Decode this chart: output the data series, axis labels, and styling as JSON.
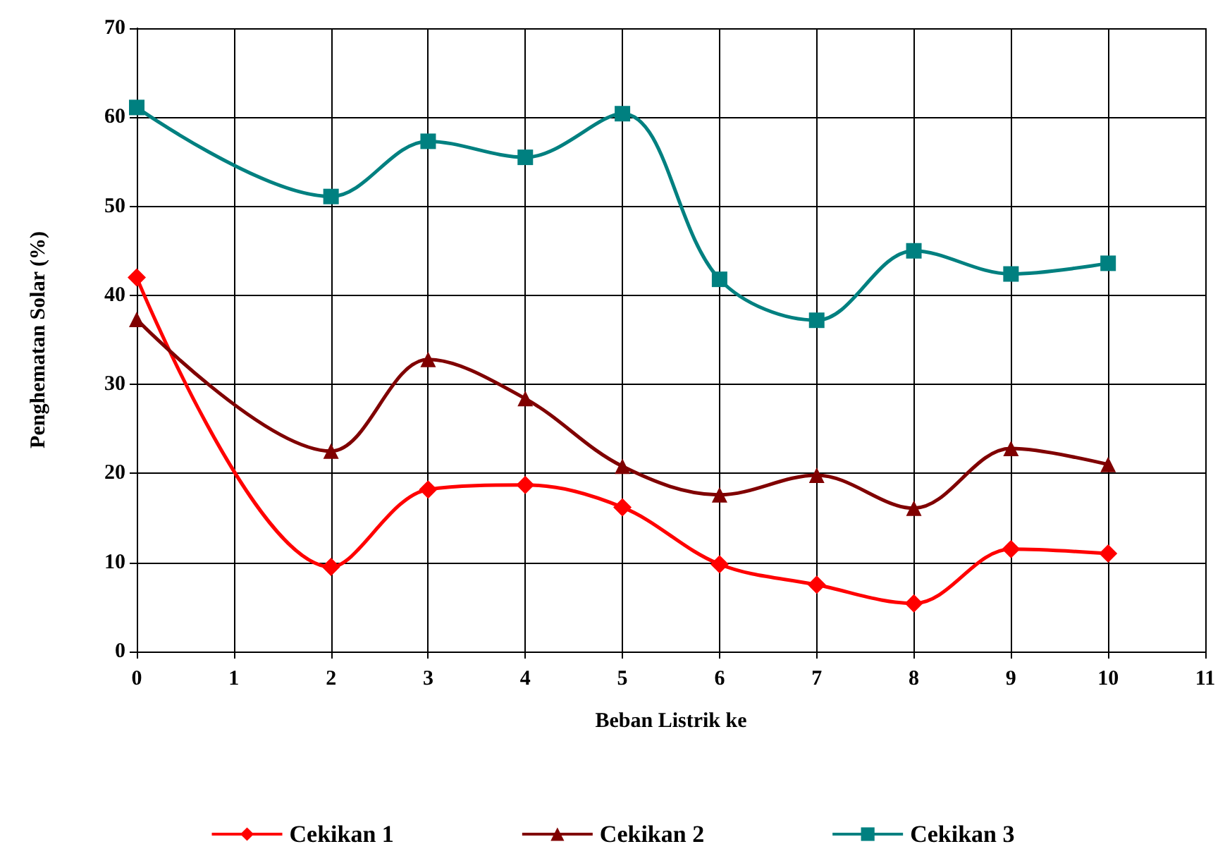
{
  "chart_data": {
    "type": "line",
    "xlabel": "Beban Listrik ke",
    "ylabel": "Penghematan Solar (%)",
    "x": [
      0,
      2,
      3,
      4,
      5,
      6,
      7,
      8,
      9,
      10
    ],
    "series": [
      {
        "name": "Cekikan 1",
        "color": "#ff0000",
        "marker": "diamond",
        "values": [
          42,
          9.5,
          18.2,
          18.7,
          16.2,
          9.8,
          7.5,
          5.4,
          11.5,
          11
        ]
      },
      {
        "name": "Cekikan 2",
        "color": "#800000",
        "marker": "triangle",
        "values": [
          37.3,
          22.5,
          32.8,
          28.4,
          20.8,
          17.6,
          19.8,
          16.1,
          22.8,
          21
        ]
      },
      {
        "name": "Cekikan 3",
        "color": "#008080",
        "marker": "square",
        "values": [
          61.1,
          51.1,
          57.3,
          55.5,
          60.4,
          41.8,
          37.2,
          45,
          42.4,
          43.6
        ]
      }
    ],
    "xlim": [
      0,
      11
    ],
    "xticks": [
      0,
      1,
      2,
      3,
      4,
      5,
      6,
      7,
      8,
      9,
      10,
      11
    ],
    "ylim": [
      0,
      70
    ],
    "yticks": [
      0,
      10,
      20,
      30,
      40,
      50,
      60,
      70
    ],
    "grid": true,
    "legend": "bottom",
    "line_style": "solid"
  }
}
